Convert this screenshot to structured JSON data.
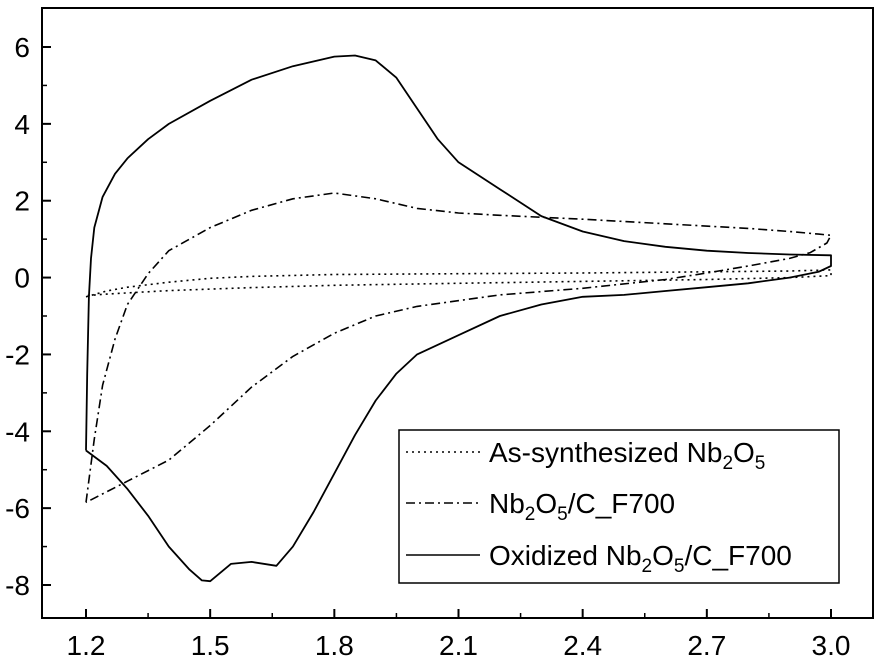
{
  "chart_data": {
    "type": "line",
    "title": "",
    "xlabel": "",
    "ylabel": "",
    "xlim": [
      1.2,
      3.0
    ],
    "ylim": [
      -8,
      6
    ],
    "grid": false,
    "legend_position": "bottom-right",
    "x_ticks": [
      "1.2",
      "1.5",
      "1.8",
      "2.1",
      "2.4",
      "2.7",
      "3.0"
    ],
    "y_ticks": [
      "6",
      "4",
      "2",
      "0",
      "-2",
      "-4",
      "-6",
      "-8"
    ],
    "series": [
      {
        "name": "As-synthesized Nb2O5",
        "legend": {
          "pre": "As-synthesized Nb",
          "sub1": "2",
          "mid": "O",
          "sub2": "5",
          "post": ""
        },
        "line_style": "dotted",
        "points": [
          [
            1.2,
            -0.5
          ],
          [
            1.25,
            -0.35
          ],
          [
            1.3,
            -0.25
          ],
          [
            1.4,
            -0.12
          ],
          [
            1.5,
            -0.02
          ],
          [
            1.6,
            0.03
          ],
          [
            1.8,
            0.08
          ],
          [
            2.1,
            0.1
          ],
          [
            2.4,
            0.12
          ],
          [
            2.7,
            0.15
          ],
          [
            2.9,
            0.17
          ],
          [
            3.0,
            0.2
          ],
          [
            3.0,
            0.05
          ],
          [
            2.9,
            0.0
          ],
          [
            2.7,
            -0.05
          ],
          [
            2.4,
            -0.1
          ],
          [
            2.1,
            -0.15
          ],
          [
            1.8,
            -0.2
          ],
          [
            1.6,
            -0.26
          ],
          [
            1.5,
            -0.3
          ],
          [
            1.4,
            -0.34
          ],
          [
            1.3,
            -0.4
          ],
          [
            1.25,
            -0.43
          ],
          [
            1.2,
            -0.47
          ]
        ]
      },
      {
        "name": "Nb2O5/C_F700",
        "legend": {
          "pre": "Nb",
          "sub1": "2",
          "mid": "O",
          "sub2": "5",
          "post": "/C_F700"
        },
        "line_style": "dashdot",
        "points": [
          [
            1.2,
            -5.85
          ],
          [
            1.22,
            -4.2
          ],
          [
            1.24,
            -2.8
          ],
          [
            1.27,
            -1.6
          ],
          [
            1.3,
            -0.7
          ],
          [
            1.35,
            0.1
          ],
          [
            1.4,
            0.7
          ],
          [
            1.5,
            1.3
          ],
          [
            1.6,
            1.75
          ],
          [
            1.7,
            2.05
          ],
          [
            1.8,
            2.2
          ],
          [
            1.9,
            2.05
          ],
          [
            2.0,
            1.8
          ],
          [
            2.1,
            1.68
          ],
          [
            2.2,
            1.62
          ],
          [
            2.4,
            1.52
          ],
          [
            2.6,
            1.4
          ],
          [
            2.8,
            1.28
          ],
          [
            2.9,
            1.2
          ],
          [
            2.97,
            1.13
          ],
          [
            3.0,
            1.1
          ],
          [
            2.99,
            0.9
          ],
          [
            2.95,
            0.65
          ],
          [
            2.9,
            0.5
          ],
          [
            2.8,
            0.3
          ],
          [
            2.7,
            0.12
          ],
          [
            2.6,
            -0.05
          ],
          [
            2.4,
            -0.28
          ],
          [
            2.2,
            -0.45
          ],
          [
            2.0,
            -0.75
          ],
          [
            1.9,
            -1.0
          ],
          [
            1.8,
            -1.45
          ],
          [
            1.7,
            -2.05
          ],
          [
            1.6,
            -2.85
          ],
          [
            1.5,
            -3.85
          ],
          [
            1.4,
            -4.75
          ],
          [
            1.3,
            -5.3
          ],
          [
            1.2,
            -5.85
          ]
        ]
      },
      {
        "name": "Oxidized Nb2O5/C_F700",
        "legend": {
          "pre": "Oxidized Nb",
          "sub1": "2",
          "mid": "O",
          "sub2": "5",
          "post": "/C_F700"
        },
        "line_style": "solid",
        "points": [
          [
            1.2,
            -4.5
          ],
          [
            1.203,
            -2.5
          ],
          [
            1.207,
            -0.5
          ],
          [
            1.212,
            0.5
          ],
          [
            1.22,
            1.3
          ],
          [
            1.24,
            2.1
          ],
          [
            1.27,
            2.7
          ],
          [
            1.3,
            3.1
          ],
          [
            1.35,
            3.6
          ],
          [
            1.4,
            4.0
          ],
          [
            1.5,
            4.6
          ],
          [
            1.6,
            5.15
          ],
          [
            1.7,
            5.5
          ],
          [
            1.8,
            5.75
          ],
          [
            1.85,
            5.78
          ],
          [
            1.9,
            5.65
          ],
          [
            1.95,
            5.2
          ],
          [
            2.0,
            4.4
          ],
          [
            2.05,
            3.6
          ],
          [
            2.1,
            3.0
          ],
          [
            2.2,
            2.3
          ],
          [
            2.3,
            1.6
          ],
          [
            2.4,
            1.2
          ],
          [
            2.5,
            0.95
          ],
          [
            2.6,
            0.8
          ],
          [
            2.7,
            0.7
          ],
          [
            2.8,
            0.64
          ],
          [
            2.9,
            0.6
          ],
          [
            3.0,
            0.58
          ],
          [
            3.0,
            0.3
          ],
          [
            2.97,
            0.15
          ],
          [
            2.9,
            0.0
          ],
          [
            2.8,
            -0.15
          ],
          [
            2.7,
            -0.25
          ],
          [
            2.6,
            -0.35
          ],
          [
            2.5,
            -0.45
          ],
          [
            2.4,
            -0.5
          ],
          [
            2.3,
            -0.7
          ],
          [
            2.2,
            -1.0
          ],
          [
            2.1,
            -1.5
          ],
          [
            2.0,
            -2.0
          ],
          [
            1.95,
            -2.5
          ],
          [
            1.9,
            -3.2
          ],
          [
            1.85,
            -4.1
          ],
          [
            1.8,
            -5.1
          ],
          [
            1.75,
            -6.1
          ],
          [
            1.7,
            -7.0
          ],
          [
            1.66,
            -7.5
          ],
          [
            1.6,
            -7.4
          ],
          [
            1.55,
            -7.45
          ],
          [
            1.5,
            -7.9
          ],
          [
            1.48,
            -7.88
          ],
          [
            1.45,
            -7.6
          ],
          [
            1.4,
            -7.0
          ],
          [
            1.35,
            -6.2
          ],
          [
            1.3,
            -5.5
          ],
          [
            1.25,
            -4.9
          ],
          [
            1.2,
            -4.5
          ]
        ]
      }
    ]
  }
}
